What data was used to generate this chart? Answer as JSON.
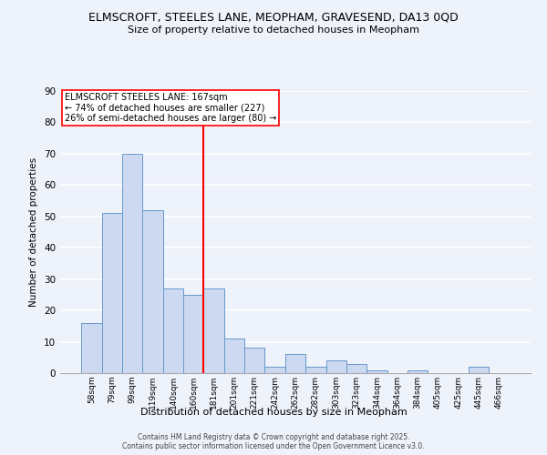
{
  "title1": "ELMSCROFT, STEELES LANE, MEOPHAM, GRAVESEND, DA13 0QD",
  "title2": "Size of property relative to detached houses in Meopham",
  "xlabel": "Distribution of detached houses by size in Meopham",
  "ylabel": "Number of detached properties",
  "categories": [
    "58sqm",
    "79sqm",
    "99sqm",
    "119sqm",
    "140sqm",
    "160sqm",
    "181sqm",
    "201sqm",
    "221sqm",
    "242sqm",
    "262sqm",
    "282sqm",
    "303sqm",
    "323sqm",
    "344sqm",
    "364sqm",
    "384sqm",
    "405sqm",
    "425sqm",
    "445sqm",
    "466sqm"
  ],
  "values": [
    16,
    51,
    70,
    52,
    27,
    25,
    27,
    11,
    8,
    2,
    6,
    2,
    4,
    3,
    1,
    0,
    1,
    0,
    0,
    2,
    0
  ],
  "bar_color": "#ccd9f0",
  "bar_edge_color": "#6699cc",
  "background_color": "#eef2fa",
  "grid_color": "#ffffff",
  "annotation_text": "ELMSCROFT STEELES LANE: 167sqm\n← 74% of detached houses are smaller (227)\n26% of semi-detached houses are larger (80) →",
  "footer_text": "Contains HM Land Registry data © Crown copyright and database right 2025.\nContains public sector information licensed under the Open Government Licence v3.0.",
  "ylim": [
    0,
    90
  ],
  "yticks": [
    0,
    10,
    20,
    30,
    40,
    50,
    60,
    70,
    80,
    90
  ],
  "property_line_x": 5.5
}
